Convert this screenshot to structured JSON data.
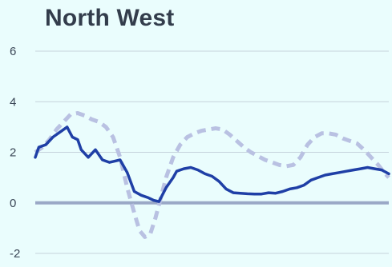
{
  "chart_data": {
    "type": "line",
    "title": "North West",
    "xlabel": "",
    "ylabel": "",
    "ylim": [
      -2,
      6
    ],
    "yticks": [
      -2,
      0,
      2,
      4,
      6
    ],
    "xlim": [
      0,
      100
    ],
    "grid": "horizontal",
    "legend": "none",
    "series": [
      {
        "style": "solid",
        "color": "#1f3fa6",
        "x": [
          0,
          1,
          3,
          5,
          7,
          9,
          10.5,
          12,
          13,
          15,
          17,
          19,
          21,
          22.5,
          24,
          26,
          28,
          30,
          32,
          33.5,
          35,
          37,
          39,
          40,
          42,
          44,
          46,
          48,
          50,
          52,
          54,
          56,
          58,
          60,
          62,
          64,
          66,
          68,
          70,
          72,
          74,
          76,
          78,
          80,
          82,
          84,
          86,
          88,
          90,
          92,
          94,
          96,
          98,
          100
        ],
        "y": [
          1.8,
          2.2,
          2.3,
          2.6,
          2.8,
          3.0,
          2.6,
          2.5,
          2.1,
          1.8,
          2.1,
          1.7,
          1.6,
          1.65,
          1.7,
          1.2,
          0.45,
          0.3,
          0.2,
          0.1,
          0.05,
          0.6,
          1.0,
          1.25,
          1.35,
          1.4,
          1.3,
          1.15,
          1.05,
          0.85,
          0.55,
          0.4,
          0.38,
          0.36,
          0.35,
          0.35,
          0.4,
          0.38,
          0.45,
          0.55,
          0.6,
          0.7,
          0.9,
          1.0,
          1.1,
          1.15,
          1.2,
          1.25,
          1.3,
          1.35,
          1.4,
          1.35,
          1.3,
          1.15
        ]
      },
      {
        "style": "dashed",
        "color": "#b9c1e2",
        "x": [
          0,
          2,
          4,
          6,
          8,
          10,
          12,
          14,
          16,
          18,
          20,
          22,
          24,
          26,
          28,
          29.5,
          31,
          32.5,
          34,
          35.5,
          37,
          39,
          41,
          43,
          45,
          47,
          49,
          51,
          53,
          55,
          57,
          59,
          61,
          63,
          65,
          67,
          69,
          71,
          73,
          75,
          77,
          79,
          81,
          83,
          85,
          87,
          89,
          91,
          93,
          95,
          97,
          99,
          100
        ],
        "y": [
          2.0,
          2.2,
          2.5,
          2.9,
          3.2,
          3.5,
          3.55,
          3.45,
          3.3,
          3.2,
          3.0,
          2.6,
          1.8,
          0.6,
          -0.4,
          -1.1,
          -1.35,
          -1.25,
          -0.6,
          0.2,
          1.0,
          1.8,
          2.3,
          2.6,
          2.75,
          2.85,
          2.9,
          2.95,
          2.9,
          2.7,
          2.45,
          2.2,
          2.0,
          1.85,
          1.7,
          1.6,
          1.5,
          1.45,
          1.5,
          1.8,
          2.3,
          2.6,
          2.75,
          2.75,
          2.7,
          2.55,
          2.45,
          2.35,
          2.1,
          1.8,
          1.5,
          1.15,
          1.0
        ]
      }
    ]
  }
}
